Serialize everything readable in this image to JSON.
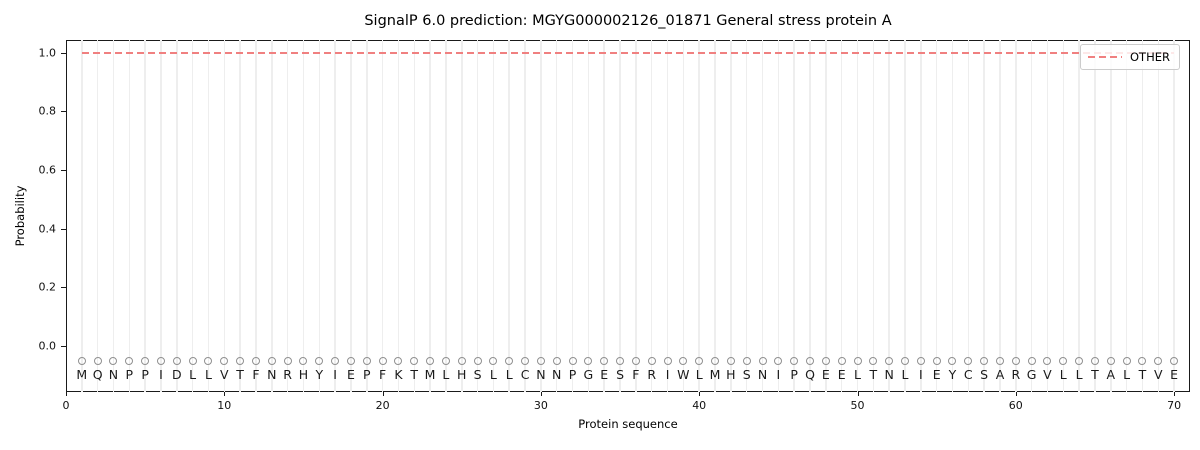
{
  "title": "SignalP 6.0 prediction: MGYG000002126_01871 General stress protein A",
  "axes": {
    "xlabel": "Protein sequence",
    "ylabel": "Probability",
    "x_tick_labels": [
      "0",
      "10",
      "20",
      "30",
      "40",
      "50",
      "60",
      "70"
    ],
    "y_tick_labels": [
      "0.0",
      "0.2",
      "0.4",
      "0.6",
      "0.8",
      "1.0"
    ]
  },
  "legend": {
    "label": "OTHER",
    "line_color": "#f08080",
    "line_style": "dashed",
    "position": "upper right"
  },
  "sequence": "MQNPPIDLLVTFNRHYIEPFKTMLHSLLCNNPGESFRIWLMHSNIPQEELTNLIEYCSARGVLLTALTVE",
  "chart_data": {
    "type": "line",
    "title": "SignalP 6.0 prediction: MGYG000002126_01871 General stress protein A",
    "xlabel": "Protein sequence",
    "ylabel": "Probability",
    "xlim": [
      0,
      71
    ],
    "ylim": [
      -0.16,
      1.04
    ],
    "x_ticks": [
      0,
      10,
      20,
      30,
      40,
      50,
      60,
      70
    ],
    "y_ticks": [
      0.0,
      0.2,
      0.4,
      0.6,
      0.8,
      1.0
    ],
    "grid": "vertical gridline at each residue position, light gray",
    "legend_position": "upper right",
    "series": [
      {
        "name": "OTHER",
        "linestyle": "dashed",
        "color": "#f08080",
        "x": [
          1,
          2,
          3,
          4,
          5,
          6,
          7,
          8,
          9,
          10,
          11,
          12,
          13,
          14,
          15,
          16,
          17,
          18,
          19,
          20,
          21,
          22,
          23,
          24,
          25,
          26,
          27,
          28,
          29,
          30,
          31,
          32,
          33,
          34,
          35,
          36,
          37,
          38,
          39,
          40,
          41,
          42,
          43,
          44,
          45,
          46,
          47,
          48,
          49,
          50,
          51,
          52,
          53,
          54,
          55,
          56,
          57,
          58,
          59,
          60,
          61,
          62,
          63,
          64,
          65,
          66,
          67,
          68,
          69,
          70
        ],
        "values": [
          1.0,
          1.0,
          1.0,
          1.0,
          1.0,
          1.0,
          1.0,
          1.0,
          1.0,
          1.0,
          1.0,
          1.0,
          1.0,
          1.0,
          1.0,
          1.0,
          1.0,
          1.0,
          1.0,
          1.0,
          1.0,
          1.0,
          1.0,
          1.0,
          1.0,
          1.0,
          1.0,
          1.0,
          1.0,
          1.0,
          1.0,
          1.0,
          1.0,
          1.0,
          1.0,
          1.0,
          1.0,
          1.0,
          1.0,
          1.0,
          1.0,
          1.0,
          1.0,
          1.0,
          1.0,
          1.0,
          1.0,
          1.0,
          1.0,
          1.0,
          1.0,
          1.0,
          1.0,
          1.0,
          1.0,
          1.0,
          1.0,
          1.0,
          1.0,
          1.0,
          1.0,
          1.0,
          1.0,
          1.0,
          1.0,
          1.0,
          1.0,
          1.0,
          1.0,
          1.0
        ]
      }
    ],
    "protein_sequence": "MQNPPIDLLVTFNRHYIEPFKTMLHSLLCNNPGESFRIWLMHSNIPQEELTNLIEYCSARGVLLTALTVE",
    "residue_marker": {
      "symbol": "o",
      "color": "#909090",
      "y": -0.05
    },
    "residue_label_y": -0.1
  }
}
